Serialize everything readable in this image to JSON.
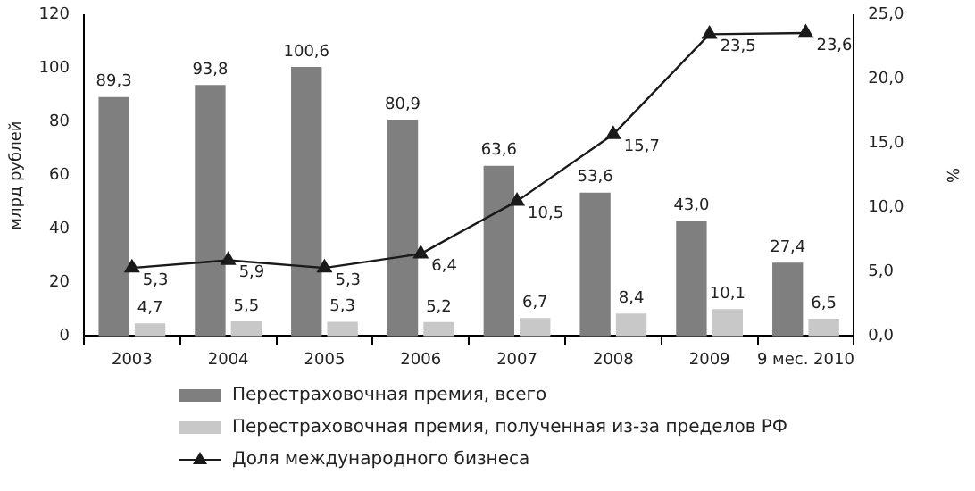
{
  "chart_data": {
    "type": "bar",
    "ylabel": "млрд рублей",
    "y2label": "%",
    "legend": "bottom",
    "categories": [
      "2003",
      "2004",
      "2005",
      "2006",
      "2007",
      "2008",
      "2009",
      "9 мес. 2010"
    ],
    "ylim": [
      0,
      120
    ],
    "yticks": [
      0,
      20,
      40,
      60,
      80,
      100,
      120
    ],
    "y2lim": [
      0,
      25
    ],
    "y2ticks": [
      {
        "value": 0,
        "label": "0,0"
      },
      {
        "value": 5,
        "label": "5,0"
      },
      {
        "value": 10,
        "label": "10,0"
      },
      {
        "value": 15,
        "label": "15,0"
      },
      {
        "value": 20,
        "label": "20,0"
      },
      {
        "value": 25,
        "label": "25,0"
      }
    ],
    "series": [
      {
        "name": "Перестраховочная премия, всего",
        "color": "#7f7f7f",
        "values": [
          89.3,
          93.8,
          100.6,
          80.9,
          63.6,
          53.6,
          43.0,
          27.4
        ],
        "value_labels": [
          "89,3",
          "93,8",
          "100,6",
          "80,9",
          "63,6",
          "53,6",
          "43,0",
          "27,4"
        ]
      },
      {
        "name": "Перестраховочная премия, полученная из-за пределов РФ",
        "color": "#c8c8c8",
        "values": [
          4.7,
          5.5,
          5.3,
          5.2,
          6.7,
          8.4,
          10.1,
          6.5
        ],
        "value_labels": [
          "4,7",
          "5,5",
          "5,3",
          "5,2",
          "6,7",
          "8,4",
          "10,1",
          "6,5"
        ]
      },
      {
        "name": "Доля международного бизнеса",
        "type": "line",
        "axis": "y2",
        "marker": "triangle",
        "color": "#1a1a1a",
        "values": [
          5.3,
          5.9,
          5.3,
          6.4,
          10.5,
          15.7,
          23.5,
          23.6
        ],
        "value_labels": [
          "5,3",
          "5,9",
          "5,3",
          "6,4",
          "10,5",
          "15,7",
          "23,5",
          "23,6"
        ]
      }
    ]
  }
}
